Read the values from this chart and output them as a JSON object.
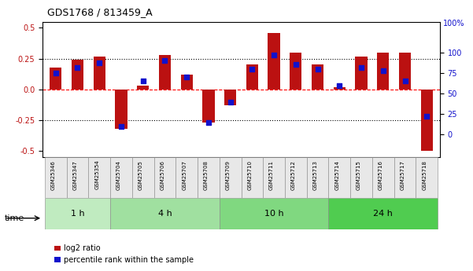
{
  "title": "GDS1768 / 813459_A",
  "samples": [
    "GSM25346",
    "GSM25347",
    "GSM25354",
    "GSM25704",
    "GSM25705",
    "GSM25706",
    "GSM25707",
    "GSM25708",
    "GSM25709",
    "GSM25710",
    "GSM25711",
    "GSM25712",
    "GSM25713",
    "GSM25714",
    "GSM25715",
    "GSM25716",
    "GSM25717",
    "GSM25718"
  ],
  "log2_ratio": [
    0.18,
    0.24,
    0.27,
    -0.32,
    0.03,
    0.28,
    0.12,
    -0.27,
    -0.13,
    0.2,
    0.46,
    0.3,
    0.2,
    0.02,
    0.27,
    0.3,
    0.3,
    -0.5
  ],
  "pct_rank": [
    75,
    82,
    87,
    10,
    65,
    90,
    70,
    15,
    40,
    80,
    97,
    85,
    80,
    60,
    82,
    78,
    65,
    22
  ],
  "time_groups": [
    {
      "label": "1 h",
      "start": 0,
      "end": 3,
      "color": "#c0ebc0"
    },
    {
      "label": "4 h",
      "start": 3,
      "end": 8,
      "color": "#a0e0a0"
    },
    {
      "label": "10 h",
      "start": 8,
      "end": 13,
      "color": "#80d880"
    },
    {
      "label": "24 h",
      "start": 13,
      "end": 18,
      "color": "#50cc50"
    }
  ],
  "bar_color": "#bb1111",
  "dot_color": "#1111cc",
  "ylim_left": [
    -0.55,
    0.55
  ],
  "ylim_right": [
    -27.5,
    137.5
  ],
  "yticks_left": [
    -0.5,
    -0.25,
    0.0,
    0.25,
    0.5
  ],
  "yticks_right": [
    0,
    25,
    50,
    75,
    100
  ],
  "legend_items": [
    "log2 ratio",
    "percentile rank within the sample"
  ],
  "legend_colors": [
    "#bb1111",
    "#1111cc"
  ]
}
